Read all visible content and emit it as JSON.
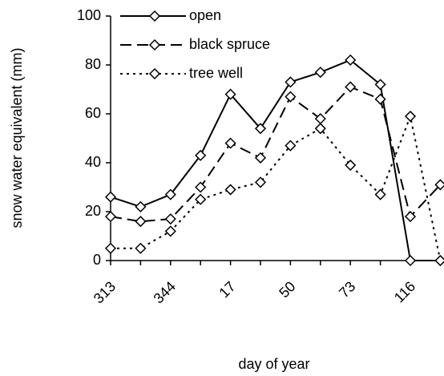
{
  "chart_data": {
    "type": "line",
    "x_label": "day of year",
    "y_label": "snow water equivalent (mm)",
    "categories": [
      "313",
      null,
      "344",
      null,
      "17",
      null,
      "50",
      null,
      "73",
      null,
      "116",
      null
    ],
    "series": [
      {
        "name": "open",
        "color": "#000000",
        "style": "solid",
        "values": [
          26,
          22,
          27,
          43,
          68,
          54,
          73,
          77,
          82,
          72,
          0,
          0
        ]
      },
      {
        "name": "black spruce",
        "color": "#000000",
        "style": "dashed",
        "values": [
          18,
          16,
          17,
          30,
          48,
          42,
          67,
          58,
          71,
          66,
          18,
          31
        ]
      },
      {
        "name": "tree well",
        "color": "#000000",
        "style": "dotted",
        "values": [
          5,
          5,
          12,
          25,
          29,
          32,
          47,
          54,
          39,
          27,
          59,
          0
        ]
      }
    ],
    "ylim": [
      0,
      100
    ],
    "yticks": [
      0,
      20,
      40,
      60,
      80,
      100
    ],
    "grid": false,
    "legend": "upper left"
  }
}
